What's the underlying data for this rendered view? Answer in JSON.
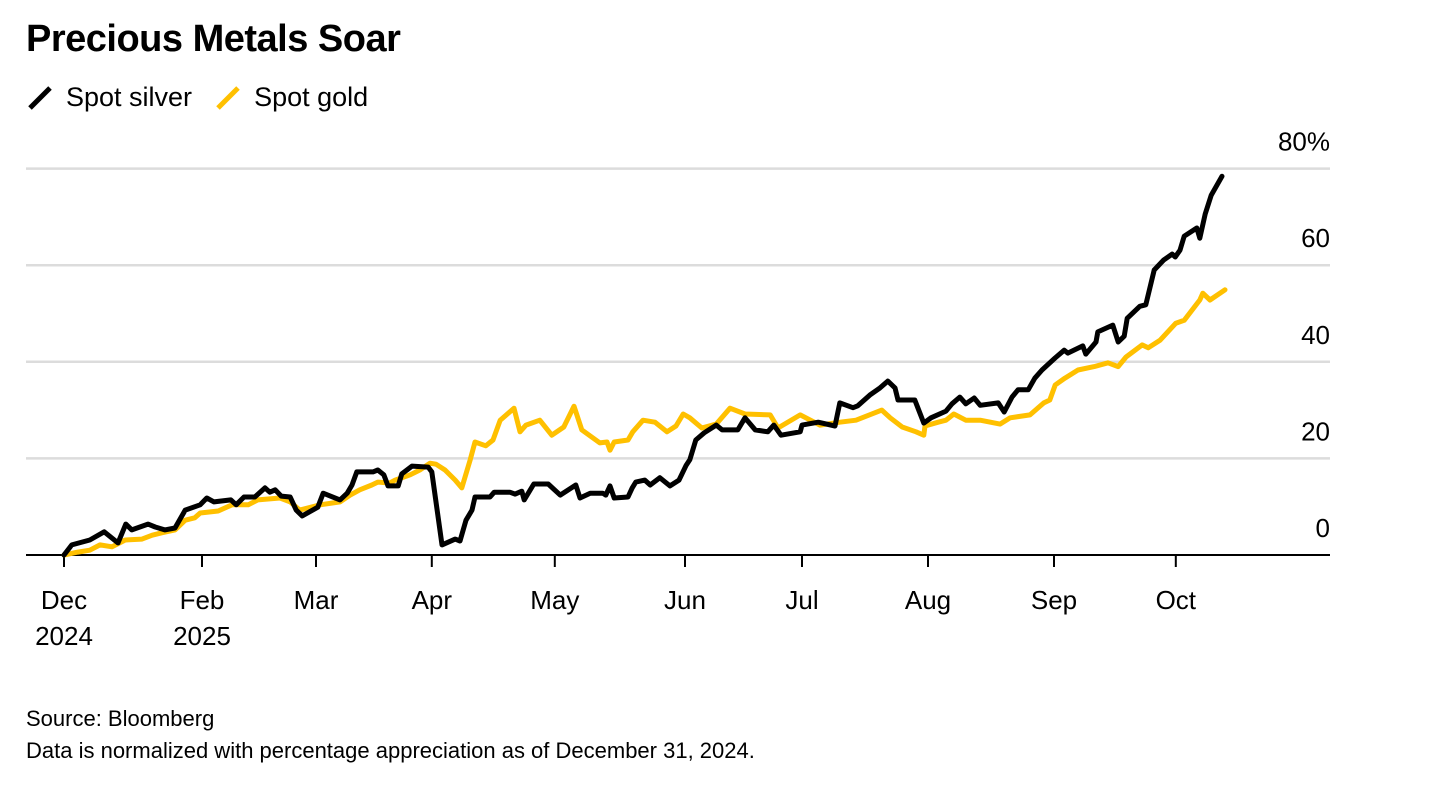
{
  "chart_data": {
    "type": "line",
    "title": "Precious Metals Soar",
    "xlabel": "",
    "ylabel": "",
    "x_unit": "trading days since Dec 31, 2024 (approx.)",
    "xlim": [
      -6,
      212
    ],
    "ylim": [
      0,
      80
    ],
    "y_ticks": [
      {
        "value": 0,
        "label": "0"
      },
      {
        "value": 20,
        "label": "20"
      },
      {
        "value": 40,
        "label": "40"
      },
      {
        "value": 60,
        "label": "60"
      },
      {
        "value": 80,
        "label": "80%"
      }
    ],
    "x_ticks": [
      {
        "value": 0,
        "label": "Dec",
        "sublabel": "2024"
      },
      {
        "value": 23,
        "label": "Feb",
        "sublabel": "2025"
      },
      {
        "value": 42,
        "label": "Mar",
        "sublabel": ""
      },
      {
        "value": 61.3,
        "label": "Apr",
        "sublabel": ""
      },
      {
        "value": 81.8,
        "label": "May",
        "sublabel": ""
      },
      {
        "value": 103.5,
        "label": "Jun",
        "sublabel": ""
      },
      {
        "value": 123,
        "label": "Jul",
        "sublabel": ""
      },
      {
        "value": 144,
        "label": "Aug",
        "sublabel": ""
      },
      {
        "value": 165,
        "label": "Sep",
        "sublabel": ""
      },
      {
        "value": 185.3,
        "label": "Oct",
        "sublabel": ""
      }
    ],
    "grid": true,
    "legend_position": "top-left",
    "series": [
      {
        "name": "Spot silver",
        "color": "#000000",
        "points": [
          [
            0,
            0
          ],
          [
            1.3,
            2.1
          ],
          [
            4.3,
            3.1
          ],
          [
            6.7,
            4.8
          ],
          [
            9,
            2.5
          ],
          [
            10.3,
            6.4
          ],
          [
            11.3,
            5.2
          ],
          [
            14,
            6.4
          ],
          [
            15.2,
            5.8
          ],
          [
            16.8,
            5.2
          ],
          [
            18.5,
            5.6
          ],
          [
            20.2,
            9.3
          ],
          [
            22.7,
            10.4
          ],
          [
            23.8,
            11.8
          ],
          [
            25,
            11
          ],
          [
            27.8,
            11.4
          ],
          [
            28.7,
            10.4
          ],
          [
            30,
            12
          ],
          [
            31.8,
            12
          ],
          [
            33.5,
            13.9
          ],
          [
            34.3,
            13
          ],
          [
            35.2,
            13.5
          ],
          [
            36.2,
            12.2
          ],
          [
            37.7,
            12
          ],
          [
            38.7,
            9.3
          ],
          [
            39.7,
            8.1
          ],
          [
            42.3,
            9.9
          ],
          [
            43.2,
            12.8
          ],
          [
            46,
            11.4
          ],
          [
            47.2,
            12.8
          ],
          [
            48,
            14.5
          ],
          [
            48.8,
            17.2
          ],
          [
            51.5,
            17.2
          ],
          [
            52.3,
            17.6
          ],
          [
            53.3,
            16.6
          ],
          [
            54,
            14.3
          ],
          [
            55.7,
            14.3
          ],
          [
            56.3,
            16.8
          ],
          [
            58,
            18.4
          ],
          [
            60.7,
            18.2
          ],
          [
            61.3,
            17.2
          ],
          [
            63,
            2.1
          ],
          [
            65.2,
            3.3
          ],
          [
            66,
            2.9
          ],
          [
            67,
            7.2
          ],
          [
            68,
            9.3
          ],
          [
            68.5,
            12
          ],
          [
            71,
            12
          ],
          [
            71.7,
            13
          ],
          [
            74.3,
            13
          ],
          [
            75.2,
            12.6
          ],
          [
            76.3,
            13.2
          ],
          [
            76.7,
            11.4
          ],
          [
            78.3,
            14.7
          ],
          [
            80.7,
            14.7
          ],
          [
            82.7,
            12.4
          ],
          [
            85.3,
            14.5
          ],
          [
            86,
            11.8
          ],
          [
            87.7,
            12.8
          ],
          [
            89.8,
            12.8
          ],
          [
            90.3,
            12.4
          ],
          [
            91,
            14.3
          ],
          [
            91.7,
            11.8
          ],
          [
            94,
            12
          ],
          [
            94.7,
            13.9
          ],
          [
            95.3,
            15.1
          ],
          [
            96.8,
            15.5
          ],
          [
            97.7,
            14.5
          ],
          [
            99.3,
            16
          ],
          [
            101,
            14.3
          ],
          [
            102.5,
            15.5
          ],
          [
            103.7,
            18.6
          ],
          [
            104.3,
            19.7
          ],
          [
            105.3,
            23.8
          ],
          [
            106.7,
            25.3
          ],
          [
            108.7,
            26.9
          ],
          [
            109.7,
            25.9
          ],
          [
            112.3,
            25.9
          ],
          [
            113.5,
            28.4
          ],
          [
            115.2,
            25.9
          ],
          [
            117.3,
            25.5
          ],
          [
            118.3,
            26.9
          ],
          [
            119.5,
            24.8
          ],
          [
            122.7,
            25.5
          ],
          [
            123,
            26.9
          ],
          [
            125.7,
            27.5
          ],
          [
            128.5,
            26.7
          ],
          [
            129.3,
            31.5
          ],
          [
            131.5,
            30.5
          ],
          [
            132.3,
            30.9
          ],
          [
            134.3,
            33.1
          ],
          [
            136,
            34.6
          ],
          [
            137.3,
            36
          ],
          [
            138.5,
            34.6
          ],
          [
            139,
            32.1
          ],
          [
            141.8,
            32.1
          ],
          [
            142.3,
            30.5
          ],
          [
            143.3,
            27.3
          ],
          [
            144.5,
            28.4
          ],
          [
            147,
            29.8
          ],
          [
            148,
            31.3
          ],
          [
            149.3,
            32.7
          ],
          [
            150.3,
            31.3
          ],
          [
            151.7,
            32.5
          ],
          [
            152.7,
            31
          ],
          [
            155.7,
            31.5
          ],
          [
            156.7,
            29.6
          ],
          [
            158,
            32.7
          ],
          [
            159,
            34.2
          ],
          [
            160.7,
            34.2
          ],
          [
            161.8,
            36.6
          ],
          [
            163,
            38.3
          ],
          [
            165.2,
            40.8
          ],
          [
            166.7,
            42.4
          ],
          [
            167.3,
            41.8
          ],
          [
            169.8,
            43.3
          ],
          [
            170.3,
            41.6
          ],
          [
            172,
            44.1
          ],
          [
            172.3,
            46.2
          ],
          [
            174.8,
            47.6
          ],
          [
            175.7,
            44.1
          ],
          [
            176.7,
            45.3
          ],
          [
            177.2,
            49
          ],
          [
            179.3,
            51.5
          ],
          [
            180.3,
            51.8
          ],
          [
            181.7,
            59
          ],
          [
            183.3,
            61.1
          ],
          [
            184.7,
            62.3
          ],
          [
            185.2,
            61.7
          ],
          [
            186,
            63.1
          ],
          [
            186.7,
            66
          ],
          [
            188.8,
            67.7
          ],
          [
            189.3,
            65.6
          ],
          [
            190.2,
            70.6
          ],
          [
            191.2,
            74.5
          ],
          [
            193,
            78.4
          ]
        ]
      },
      {
        "name": "Spot gold",
        "color": "#FFC000",
        "points": [
          [
            0,
            0
          ],
          [
            2.3,
            0.6
          ],
          [
            4.3,
            1
          ],
          [
            6,
            2.1
          ],
          [
            8,
            1.7
          ],
          [
            10.2,
            3.1
          ],
          [
            13,
            3.3
          ],
          [
            14.7,
            4.1
          ],
          [
            16.3,
            4.6
          ],
          [
            18.5,
            5.2
          ],
          [
            20.2,
            7.2
          ],
          [
            21.8,
            7.7
          ],
          [
            22.7,
            8.7
          ],
          [
            25.7,
            9.1
          ],
          [
            28,
            10.4
          ],
          [
            30.7,
            10.4
          ],
          [
            32.3,
            11.4
          ],
          [
            36,
            11.8
          ],
          [
            37.7,
            11
          ],
          [
            39.3,
            9.3
          ],
          [
            42.7,
            10.4
          ],
          [
            46,
            11
          ],
          [
            47.7,
            12.4
          ],
          [
            49.3,
            13.5
          ],
          [
            51.3,
            14.5
          ],
          [
            52.3,
            15.1
          ],
          [
            54.3,
            14.9
          ],
          [
            55.2,
            15.5
          ],
          [
            57.7,
            16.6
          ],
          [
            59.3,
            17.6
          ],
          [
            61,
            19
          ],
          [
            62,
            18.8
          ],
          [
            63.5,
            17.6
          ],
          [
            65.2,
            15.5
          ],
          [
            66.3,
            13.9
          ],
          [
            67.7,
            19.7
          ],
          [
            68.5,
            23.4
          ],
          [
            70.3,
            22.6
          ],
          [
            71.5,
            23.8
          ],
          [
            72.7,
            27.9
          ],
          [
            75,
            30.4
          ],
          [
            76,
            25.5
          ],
          [
            77,
            26.9
          ],
          [
            79.3,
            27.9
          ],
          [
            81.3,
            24.8
          ],
          [
            83.3,
            26.5
          ],
          [
            85,
            30.8
          ],
          [
            86.3,
            25.9
          ],
          [
            89.3,
            23.2
          ],
          [
            90.5,
            23.4
          ],
          [
            91,
            21.7
          ],
          [
            91.7,
            23.4
          ],
          [
            94,
            23.8
          ],
          [
            94.8,
            25.5
          ],
          [
            96.5,
            27.9
          ],
          [
            98.5,
            27.5
          ],
          [
            100.5,
            25.5
          ],
          [
            102,
            26.7
          ],
          [
            103.2,
            29.2
          ],
          [
            104.3,
            28.4
          ],
          [
            106.3,
            26.3
          ],
          [
            108.7,
            27.1
          ],
          [
            111,
            30.4
          ],
          [
            113.5,
            29.2
          ],
          [
            117.7,
            29
          ],
          [
            119,
            26.3
          ],
          [
            122.7,
            29
          ],
          [
            124.3,
            28
          ],
          [
            126,
            26.9
          ],
          [
            129.3,
            27.5
          ],
          [
            132,
            27.9
          ],
          [
            136.3,
            30
          ],
          [
            137.7,
            28.4
          ],
          [
            139.7,
            26.5
          ],
          [
            142,
            25.5
          ],
          [
            143.3,
            24.8
          ],
          [
            143.5,
            26.7
          ],
          [
            145.7,
            27.5
          ],
          [
            147,
            27.9
          ],
          [
            148.3,
            29.2
          ],
          [
            150.3,
            27.9
          ],
          [
            152.7,
            27.9
          ],
          [
            156,
            27.1
          ],
          [
            157.7,
            28.4
          ],
          [
            161,
            29
          ],
          [
            163.3,
            31.5
          ],
          [
            164.3,
            32.1
          ],
          [
            165.2,
            35.2
          ],
          [
            166.8,
            36.6
          ],
          [
            169,
            38.3
          ],
          [
            171.7,
            39
          ],
          [
            174,
            39.8
          ],
          [
            175.7,
            39
          ],
          [
            177,
            41
          ],
          [
            179.7,
            43.5
          ],
          [
            180.7,
            42.9
          ],
          [
            182.7,
            44.5
          ],
          [
            185.3,
            48
          ],
          [
            186.7,
            48.6
          ],
          [
            189.3,
            52.8
          ],
          [
            189.8,
            54.2
          ],
          [
            191,
            52.8
          ],
          [
            193.5,
            54.9
          ]
        ]
      }
    ]
  },
  "footer": {
    "source": "Source: Bloomberg",
    "note": "Data is normalized with percentage appreciation as of December 31, 2024."
  }
}
